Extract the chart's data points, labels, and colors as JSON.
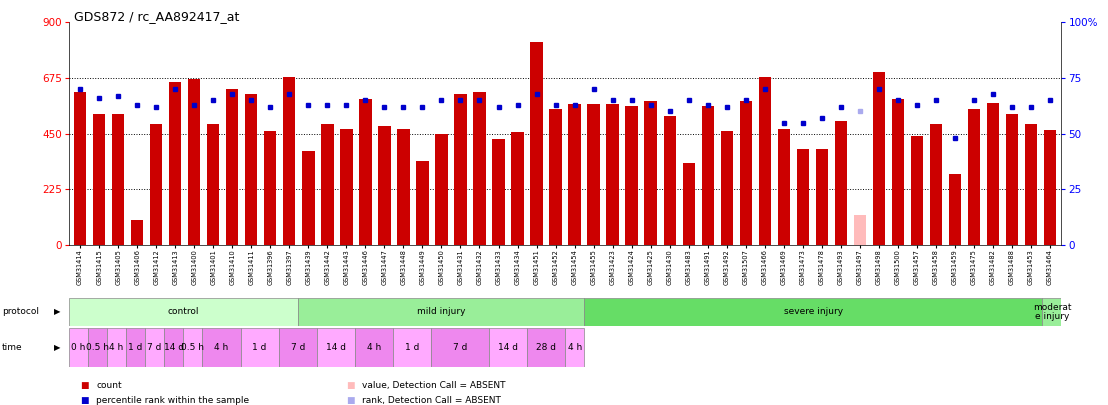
{
  "title": "GDS872 / rc_AA892417_at",
  "samples": [
    "GSM31414",
    "GSM31415",
    "GSM31405",
    "GSM31406",
    "GSM31412",
    "GSM31413",
    "GSM31400",
    "GSM31401",
    "GSM31410",
    "GSM31411",
    "GSM31396",
    "GSM31397",
    "GSM31439",
    "GSM31442",
    "GSM31443",
    "GSM31446",
    "GSM31447",
    "GSM31448",
    "GSM31449",
    "GSM31450",
    "GSM31431",
    "GSM31432",
    "GSM31433",
    "GSM31434",
    "GSM31451",
    "GSM31452",
    "GSM31454",
    "GSM31455",
    "GSM31423",
    "GSM31424",
    "GSM31425",
    "GSM31430",
    "GSM31483",
    "GSM31491",
    "GSM31492",
    "GSM31507",
    "GSM31466",
    "GSM31469",
    "GSM31473",
    "GSM31478",
    "GSM31493",
    "GSM31497",
    "GSM31498",
    "GSM31500",
    "GSM31457",
    "GSM31458",
    "GSM31459",
    "GSM31475",
    "GSM31482",
    "GSM31488",
    "GSM31453",
    "GSM31464"
  ],
  "bar_values": [
    620,
    530,
    530,
    100,
    490,
    660,
    670,
    490,
    630,
    610,
    460,
    680,
    380,
    490,
    470,
    590,
    480,
    470,
    340,
    450,
    610,
    620,
    430,
    455,
    820,
    550,
    570,
    570,
    570,
    560,
    580,
    520,
    330,
    560,
    460,
    580,
    680,
    470,
    390,
    390,
    500,
    120,
    700,
    590,
    440,
    490,
    285,
    550,
    575,
    530,
    490,
    465
  ],
  "rank_values": [
    70,
    66,
    67,
    63,
    62,
    70,
    63,
    65,
    68,
    65,
    62,
    68,
    63,
    63,
    63,
    65,
    62,
    62,
    62,
    65,
    65,
    65,
    62,
    63,
    68,
    63,
    63,
    70,
    65,
    65,
    63,
    60,
    65,
    63,
    62,
    65,
    70,
    55,
    55,
    57,
    62,
    60,
    70,
    65,
    63,
    65,
    48,
    65,
    68,
    62,
    62,
    65
  ],
  "absent_bars": [
    41
  ],
  "absent_ranks": [
    41
  ],
  "ylim_left": [
    0,
    900
  ],
  "yticks_left": [
    0,
    225,
    450,
    675,
    900
  ],
  "ytick_labels_left": [
    "0",
    "225",
    "450",
    "675",
    "900"
  ],
  "ytick_labels_right": [
    "0",
    "25",
    "50",
    "75",
    "100%"
  ],
  "dotted_lines": [
    225,
    450,
    675
  ],
  "bar_color": "#cc0000",
  "absent_bar_color": "#ffbbbb",
  "rank_color": "#0000cc",
  "absent_rank_color": "#aaaaee",
  "bg_color": "#ffffff",
  "protocol_groups": [
    {
      "label": "control",
      "start": 0,
      "end": 12,
      "color": "#ccffcc"
    },
    {
      "label": "mild injury",
      "start": 12,
      "end": 27,
      "color": "#99ee99"
    },
    {
      "label": "severe injury",
      "start": 27,
      "end": 51,
      "color": "#66dd66"
    },
    {
      "label": "moderat\ne injury",
      "start": 51,
      "end": 52,
      "color": "#99ee99"
    }
  ],
  "time_groups": [
    {
      "label": "0 h",
      "start": 0,
      "end": 1
    },
    {
      "label": "0.5 h",
      "start": 1,
      "end": 2
    },
    {
      "label": "4 h",
      "start": 2,
      "end": 3
    },
    {
      "label": "1 d",
      "start": 3,
      "end": 4
    },
    {
      "label": "7 d",
      "start": 4,
      "end": 5
    },
    {
      "label": "14 d",
      "start": 5,
      "end": 6
    },
    {
      "label": "0.5 h",
      "start": 6,
      "end": 7
    },
    {
      "label": "4 h",
      "start": 7,
      "end": 9
    },
    {
      "label": "1 d",
      "start": 9,
      "end": 11
    },
    {
      "label": "7 d",
      "start": 11,
      "end": 13
    },
    {
      "label": "14 d",
      "start": 13,
      "end": 15
    },
    {
      "label": "4 h",
      "start": 15,
      "end": 17
    },
    {
      "label": "1 d",
      "start": 17,
      "end": 19
    },
    {
      "label": "7 d",
      "start": 19,
      "end": 22
    },
    {
      "label": "14 d",
      "start": 22,
      "end": 24
    },
    {
      "label": "28 d",
      "start": 24,
      "end": 26
    },
    {
      "label": "4 h",
      "start": 26,
      "end": 27
    }
  ],
  "legend_items": [
    {
      "color": "#cc0000",
      "label": "count",
      "col": 0,
      "row": 0
    },
    {
      "color": "#0000cc",
      "label": "percentile rank within the sample",
      "col": 0,
      "row": 1
    },
    {
      "color": "#ffbbbb",
      "label": "value, Detection Call = ABSENT",
      "col": 1,
      "row": 0
    },
    {
      "color": "#aaaaee",
      "label": "rank, Detection Call = ABSENT",
      "col": 1,
      "row": 1
    }
  ]
}
